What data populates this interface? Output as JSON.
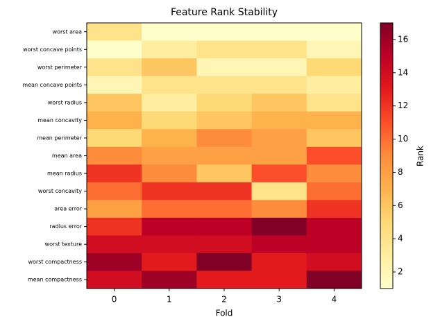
{
  "chart_data": {
    "type": "heatmap",
    "title": "Feature Rank Stability",
    "xlabel": "Fold",
    "colorbar_label": "Rank",
    "colormap": "YlOrRd",
    "categories": [
      "0",
      "1",
      "2",
      "3",
      "4"
    ],
    "rows": [
      "worst area",
      "worst concave points",
      "worst perimeter",
      "mean concave points",
      "worst radius",
      "mean concavity",
      "mean perimeter",
      "mean area",
      "mean radius",
      "worst concavity",
      "area error",
      "radius error",
      "worst texture",
      "worst compactness",
      "mean compactness"
    ],
    "values": [
      [
        4,
        1,
        1,
        1,
        1
      ],
      [
        1,
        3,
        4,
        4,
        2
      ],
      [
        4,
        6,
        2,
        2,
        5
      ],
      [
        2,
        4,
        4,
        4,
        3
      ],
      [
        6,
        3,
        5,
        6,
        4
      ],
      [
        7,
        5,
        6,
        7,
        7
      ],
      [
        5,
        7,
        9,
        8,
        6
      ],
      [
        9,
        8,
        8,
        8,
        11
      ],
      [
        12,
        9,
        6,
        11,
        9
      ],
      [
        10,
        12,
        12,
        4,
        10
      ],
      [
        8,
        10,
        10,
        9,
        12
      ],
      [
        12,
        15,
        15,
        17,
        15
      ],
      [
        14,
        14,
        14,
        15,
        15
      ],
      [
        16,
        13,
        17,
        13,
        14
      ],
      [
        14,
        16,
        13,
        13,
        17
      ]
    ],
    "clim": [
      1,
      17
    ],
    "cticks": [
      2,
      4,
      6,
      8,
      10,
      12,
      14,
      16
    ]
  }
}
